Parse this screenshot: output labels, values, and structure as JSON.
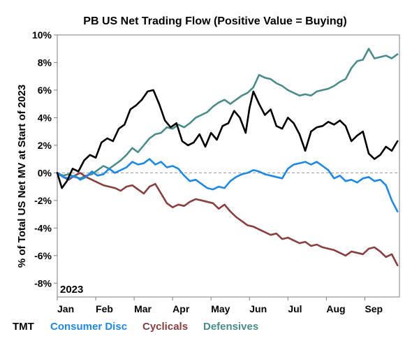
{
  "chart_data": {
    "type": "line",
    "title": "PB US Net Trading Flow (Positive Value = Buying)",
    "ylabel": "% of Total US Net MV at Start of 2023",
    "xlabel": "",
    "annotation": "2023",
    "ylim": [
      -9,
      10
    ],
    "xlim": [
      0,
      8.9
    ],
    "y_ticks": [
      -8,
      -6,
      -4,
      -2,
      0,
      2,
      4,
      6,
      8,
      10
    ],
    "y_tick_labels": [
      "-8%",
      "-6%",
      "-4%",
      "-2%",
      "0%",
      "2%",
      "4%",
      "6%",
      "8%",
      "10%"
    ],
    "x_tick_positions": [
      0,
      1,
      2,
      3,
      4,
      5,
      6,
      7,
      8
    ],
    "x_tick_labels": [
      "Jan",
      "Feb",
      "Mar",
      "Apr",
      "May",
      "Jun",
      "Jul",
      "Aug",
      "Sep"
    ],
    "zero_line": "dashed",
    "legend_position": "bottom",
    "series": [
      {
        "name": "TMT",
        "color": "#000000",
        "x": [
          0,
          0.12,
          0.25,
          0.4,
          0.55,
          0.7,
          0.85,
          1.0,
          1.15,
          1.3,
          1.45,
          1.6,
          1.75,
          1.9,
          2.05,
          2.2,
          2.35,
          2.5,
          2.65,
          2.8,
          2.95,
          3.1,
          3.25,
          3.4,
          3.55,
          3.7,
          3.85,
          4.0,
          4.15,
          4.3,
          4.45,
          4.6,
          4.75,
          4.9,
          5.0,
          5.1,
          5.25,
          5.4,
          5.55,
          5.7,
          5.85,
          6.0,
          6.15,
          6.3,
          6.45,
          6.6,
          6.75,
          6.9,
          7.05,
          7.2,
          7.35,
          7.5,
          7.65,
          7.8,
          7.95,
          8.1,
          8.25,
          8.4,
          8.55,
          8.7,
          8.85
        ],
        "values": [
          0,
          -1.1,
          -0.6,
          0.3,
          0.1,
          0.9,
          1.3,
          1.1,
          2.2,
          2.5,
          2.3,
          3.2,
          3.5,
          4.6,
          4.9,
          5.3,
          5.9,
          6.0,
          5.0,
          3.8,
          3.3,
          3.6,
          2.3,
          2.0,
          2.2,
          2.8,
          1.9,
          2.9,
          2.4,
          3.4,
          3.6,
          4.5,
          4.0,
          2.9,
          4.7,
          5.9,
          5.0,
          4.2,
          4.6,
          3.4,
          3.2,
          4.0,
          3.6,
          2.8,
          1.6,
          3.0,
          3.3,
          3.4,
          3.7,
          3.5,
          3.8,
          3.4,
          2.3,
          2.7,
          3.0,
          1.4,
          1.0,
          1.3,
          1.9,
          1.6,
          2.3
        ]
      },
      {
        "name": "Consumer Disc",
        "color": "#1e88e5",
        "x": [
          0,
          0.15,
          0.3,
          0.45,
          0.6,
          0.75,
          0.9,
          1.05,
          1.2,
          1.35,
          1.5,
          1.65,
          1.8,
          1.95,
          2.1,
          2.25,
          2.4,
          2.55,
          2.7,
          2.85,
          3.0,
          3.15,
          3.3,
          3.45,
          3.6,
          3.75,
          3.9,
          4.05,
          4.2,
          4.35,
          4.5,
          4.65,
          4.8,
          4.95,
          5.1,
          5.25,
          5.4,
          5.55,
          5.7,
          5.85,
          6.0,
          6.15,
          6.3,
          6.45,
          6.6,
          6.75,
          6.9,
          7.05,
          7.2,
          7.35,
          7.5,
          7.65,
          7.8,
          7.95,
          8.1,
          8.25,
          8.4,
          8.55,
          8.7,
          8.85
        ],
        "values": [
          0,
          -0.3,
          -0.4,
          -0.2,
          -0.5,
          -0.3,
          0.1,
          -0.2,
          -0.1,
          0.3,
          0.0,
          0.2,
          0.4,
          0.8,
          0.6,
          0.7,
          1.0,
          0.6,
          0.8,
          0.4,
          0.5,
          0.3,
          -0.2,
          -0.6,
          -0.5,
          -0.8,
          -1.1,
          -1.2,
          -1.0,
          -1.1,
          -0.6,
          -0.3,
          -0.1,
          0.0,
          0.2,
          0.1,
          -0.1,
          -0.2,
          -0.3,
          -0.4,
          0.3,
          0.6,
          0.7,
          0.8,
          0.6,
          0.8,
          0.5,
          0.2,
          -0.4,
          -0.2,
          -0.6,
          -0.5,
          -0.7,
          -0.4,
          -0.3,
          -0.6,
          -0.5,
          -0.9,
          -2.0,
          -2.8
        ]
      },
      {
        "name": "Cyclicals",
        "color": "#8b3e3e",
        "x": [
          0,
          0.15,
          0.3,
          0.45,
          0.6,
          0.75,
          0.9,
          1.05,
          1.2,
          1.35,
          1.5,
          1.65,
          1.8,
          1.95,
          2.1,
          2.25,
          2.4,
          2.55,
          2.7,
          2.85,
          3.0,
          3.15,
          3.3,
          3.45,
          3.6,
          3.75,
          3.9,
          4.05,
          4.2,
          4.35,
          4.5,
          4.65,
          4.8,
          4.95,
          5.1,
          5.25,
          5.4,
          5.55,
          5.7,
          5.85,
          6.0,
          6.15,
          6.3,
          6.45,
          6.6,
          6.75,
          6.9,
          7.05,
          7.2,
          7.35,
          7.5,
          7.65,
          7.8,
          7.95,
          8.1,
          8.25,
          8.4,
          8.55,
          8.7,
          8.85
        ],
        "values": [
          0,
          -0.3,
          -0.5,
          -0.2,
          0.0,
          -0.3,
          -0.5,
          -0.7,
          -0.9,
          -1.0,
          -1.1,
          -1.3,
          -1.0,
          -0.9,
          -1.2,
          -1.5,
          -1.0,
          -0.8,
          -1.5,
          -2.2,
          -2.5,
          -2.3,
          -2.4,
          -2.1,
          -1.9,
          -2.0,
          -2.1,
          -2.2,
          -2.6,
          -2.3,
          -2.8,
          -3.2,
          -3.5,
          -3.8,
          -3.9,
          -4.1,
          -4.3,
          -4.5,
          -4.4,
          -4.8,
          -4.7,
          -4.9,
          -5.1,
          -5.0,
          -5.3,
          -5.2,
          -5.4,
          -5.5,
          -5.6,
          -5.8,
          -6.0,
          -5.7,
          -5.8,
          -5.9,
          -5.5,
          -5.4,
          -5.7,
          -6.1,
          -5.9,
          -6.7
        ]
      },
      {
        "name": "Defensives",
        "color": "#4a8c8c",
        "x": [
          0,
          0.15,
          0.3,
          0.45,
          0.6,
          0.75,
          0.9,
          1.05,
          1.2,
          1.35,
          1.5,
          1.65,
          1.8,
          1.95,
          2.1,
          2.25,
          2.4,
          2.55,
          2.7,
          2.85,
          3.0,
          3.15,
          3.3,
          3.45,
          3.6,
          3.75,
          3.9,
          4.05,
          4.2,
          4.35,
          4.5,
          4.65,
          4.8,
          4.95,
          5.1,
          5.25,
          5.4,
          5.55,
          5.7,
          5.85,
          6.0,
          6.15,
          6.3,
          6.45,
          6.6,
          6.75,
          6.9,
          7.05,
          7.2,
          7.35,
          7.5,
          7.65,
          7.8,
          7.95,
          8.1,
          8.25,
          8.4,
          8.55,
          8.7,
          8.85
        ],
        "values": [
          0,
          -0.2,
          -0.1,
          -0.3,
          -0.4,
          -0.2,
          -0.1,
          0.2,
          0.5,
          0.3,
          0.6,
          0.9,
          1.3,
          1.8,
          1.5,
          2.0,
          2.5,
          2.8,
          2.9,
          3.3,
          3.2,
          3.5,
          3.3,
          3.6,
          4.0,
          4.2,
          4.4,
          4.8,
          5.1,
          5.3,
          5.0,
          5.3,
          5.6,
          5.8,
          6.2,
          7.1,
          6.9,
          6.8,
          6.5,
          6.3,
          6.0,
          5.8,
          5.6,
          5.7,
          5.6,
          5.9,
          6.0,
          6.1,
          6.3,
          6.6,
          6.8,
          7.6,
          8.1,
          8.2,
          9.0,
          8.3,
          8.4,
          8.5,
          8.3,
          8.6
        ]
      }
    ]
  }
}
